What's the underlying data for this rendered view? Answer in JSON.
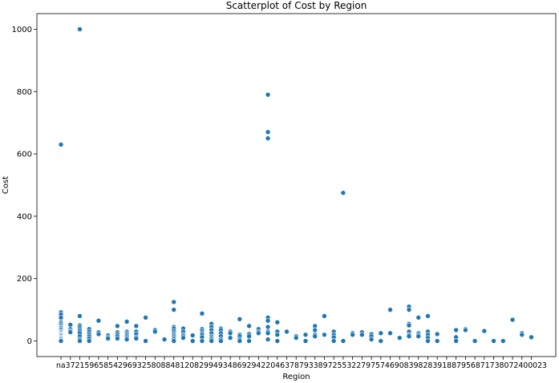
{
  "chart_data": {
    "type": "scatter",
    "title": "Scatterplot of Cost by Region",
    "xlabel": "Region",
    "ylabel": "Cost",
    "ylim": [
      -50,
      1050
    ],
    "yticks": [
      0,
      200,
      400,
      600,
      800,
      1000
    ],
    "grid": false,
    "marker_color": "#1f77b4",
    "categories": [
      "na",
      "37",
      "21",
      "59",
      "65",
      "85",
      "42",
      "96",
      "93",
      "25",
      "80",
      "88",
      "48",
      "12",
      "08",
      "29",
      "94",
      "93",
      "48",
      "69",
      "29",
      "42",
      "20",
      "46",
      "37",
      "87",
      "93",
      "38",
      "97",
      "25",
      "53",
      "22",
      "79",
      "75",
      "74",
      "69",
      "08",
      "39",
      "82",
      "83",
      "91",
      "88",
      "79",
      "56",
      "87",
      "17",
      "38",
      "07",
      "24",
      "00",
      "23"
    ],
    "x_tick_text": "na37215965854296932580884812082994934869294220463787933897255322797574690839828391887956871738072400023",
    "points": [
      [
        0,
        630
      ],
      [
        0,
        92
      ],
      [
        0,
        85
      ],
      [
        0,
        75
      ],
      [
        0,
        60
      ],
      [
        0,
        55
      ],
      [
        0,
        50
      ],
      [
        0,
        45
      ],
      [
        0,
        42
      ],
      [
        0,
        38
      ],
      [
        0,
        35
      ],
      [
        0,
        30
      ],
      [
        0,
        28
      ],
      [
        0,
        25
      ],
      [
        0,
        22
      ],
      [
        0,
        20
      ],
      [
        0,
        18
      ],
      [
        0,
        15
      ],
      [
        0,
        12
      ],
      [
        0,
        10
      ],
      [
        0,
        8
      ],
      [
        0,
        5
      ],
      [
        0,
        2
      ],
      [
        0,
        0
      ],
      [
        1,
        52
      ],
      [
        1,
        38
      ],
      [
        1,
        32
      ],
      [
        1,
        28
      ],
      [
        2,
        1000
      ],
      [
        2,
        80
      ],
      [
        2,
        50
      ],
      [
        2,
        45
      ],
      [
        2,
        38
      ],
      [
        2,
        32
      ],
      [
        2,
        25
      ],
      [
        2,
        15
      ],
      [
        2,
        5
      ],
      [
        2,
        0
      ],
      [
        3,
        38
      ],
      [
        3,
        30
      ],
      [
        3,
        22
      ],
      [
        3,
        15
      ],
      [
        3,
        8
      ],
      [
        3,
        0
      ],
      [
        4,
        65
      ],
      [
        4,
        28
      ],
      [
        4,
        22
      ],
      [
        5,
        18
      ],
      [
        5,
        12
      ],
      [
        5,
        8
      ],
      [
        6,
        48
      ],
      [
        6,
        28
      ],
      [
        6,
        22
      ],
      [
        6,
        15
      ],
      [
        6,
        8
      ],
      [
        7,
        62
      ],
      [
        7,
        30
      ],
      [
        7,
        25
      ],
      [
        7,
        20
      ],
      [
        7,
        15
      ],
      [
        7,
        10
      ],
      [
        7,
        5
      ],
      [
        8,
        48
      ],
      [
        8,
        30
      ],
      [
        8,
        22
      ],
      [
        8,
        12
      ],
      [
        8,
        8
      ],
      [
        9,
        75
      ],
      [
        9,
        0
      ],
      [
        10,
        35
      ],
      [
        10,
        30
      ],
      [
        11,
        5
      ],
      [
        12,
        125
      ],
      [
        12,
        100
      ],
      [
        12,
        45
      ],
      [
        12,
        40
      ],
      [
        12,
        32
      ],
      [
        12,
        25
      ],
      [
        12,
        20
      ],
      [
        12,
        15
      ],
      [
        12,
        10
      ],
      [
        12,
        5
      ],
      [
        12,
        0
      ],
      [
        13,
        40
      ],
      [
        13,
        30
      ],
      [
        13,
        20
      ],
      [
        13,
        15
      ],
      [
        13,
        10
      ],
      [
        14,
        18
      ],
      [
        14,
        0
      ],
      [
        15,
        88
      ],
      [
        15,
        38
      ],
      [
        15,
        32
      ],
      [
        15,
        25
      ],
      [
        15,
        20
      ],
      [
        15,
        12
      ],
      [
        15,
        0
      ],
      [
        16,
        55
      ],
      [
        16,
        45
      ],
      [
        16,
        35
      ],
      [
        16,
        25
      ],
      [
        16,
        15
      ],
      [
        16,
        10
      ],
      [
        16,
        5
      ],
      [
        16,
        0
      ],
      [
        17,
        40
      ],
      [
        17,
        35
      ],
      [
        17,
        25
      ],
      [
        17,
        15
      ],
      [
        17,
        5
      ],
      [
        17,
        0
      ],
      [
        18,
        30
      ],
      [
        18,
        25
      ],
      [
        18,
        10
      ],
      [
        19,
        70
      ],
      [
        19,
        20
      ],
      [
        19,
        15
      ],
      [
        19,
        5
      ],
      [
        19,
        0
      ],
      [
        20,
        48
      ],
      [
        20,
        22
      ],
      [
        20,
        15
      ],
      [
        20,
        0
      ],
      [
        21,
        38
      ],
      [
        21,
        30
      ],
      [
        21,
        25
      ],
      [
        22,
        790
      ],
      [
        22,
        670
      ],
      [
        22,
        650
      ],
      [
        22,
        75
      ],
      [
        22,
        65
      ],
      [
        22,
        45
      ],
      [
        22,
        30
      ],
      [
        22,
        25
      ],
      [
        22,
        5
      ],
      [
        23,
        60
      ],
      [
        23,
        30
      ],
      [
        23,
        20
      ],
      [
        23,
        0
      ],
      [
        24,
        30
      ],
      [
        25,
        15
      ],
      [
        25,
        10
      ],
      [
        26,
        20
      ],
      [
        26,
        0
      ],
      [
        27,
        48
      ],
      [
        27,
        35
      ],
      [
        27,
        20
      ],
      [
        27,
        15
      ],
      [
        28,
        80
      ],
      [
        28,
        20
      ],
      [
        29,
        30
      ],
      [
        29,
        20
      ],
      [
        29,
        12
      ],
      [
        29,
        0
      ],
      [
        30,
        475
      ],
      [
        30,
        0
      ],
      [
        31,
        25
      ],
      [
        31,
        20
      ],
      [
        32,
        28
      ],
      [
        32,
        20
      ],
      [
        33,
        22
      ],
      [
        33,
        15
      ],
      [
        33,
        5
      ],
      [
        34,
        25
      ],
      [
        34,
        0
      ],
      [
        35,
        100
      ],
      [
        35,
        25
      ],
      [
        36,
        10
      ],
      [
        37,
        110
      ],
      [
        37,
        100
      ],
      [
        37,
        55
      ],
      [
        37,
        50
      ],
      [
        37,
        30
      ],
      [
        37,
        20
      ],
      [
        37,
        15
      ],
      [
        38,
        75
      ],
      [
        38,
        25
      ],
      [
        38,
        20
      ],
      [
        38,
        15
      ],
      [
        39,
        80
      ],
      [
        39,
        30
      ],
      [
        39,
        20
      ],
      [
        39,
        10
      ],
      [
        39,
        0
      ],
      [
        40,
        22
      ],
      [
        40,
        0
      ],
      [
        42,
        35
      ],
      [
        42,
        12
      ],
      [
        42,
        0
      ],
      [
        43,
        38
      ],
      [
        43,
        35
      ],
      [
        44,
        0
      ],
      [
        45,
        32
      ],
      [
        46,
        0
      ],
      [
        47,
        0
      ],
      [
        48,
        68
      ],
      [
        49,
        25
      ],
      [
        49,
        20
      ],
      [
        50,
        12
      ]
    ]
  }
}
